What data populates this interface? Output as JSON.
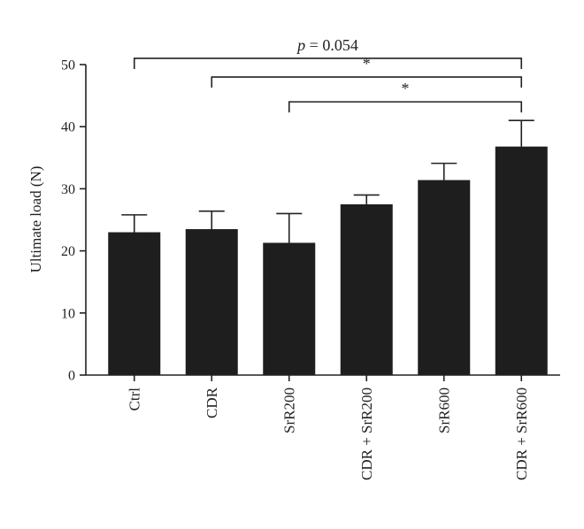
{
  "chart_data": {
    "type": "bar",
    "ylabel": "Ultimate load (N)",
    "ylim": [
      0,
      50
    ],
    "yticks": [
      0,
      10,
      20,
      30,
      40,
      50
    ],
    "categories": [
      "Ctrl",
      "CDR",
      "SrR200",
      "CDR + SrR200",
      "SrR600",
      "CDR + SrR600"
    ],
    "values": [
      23.0,
      23.5,
      21.3,
      27.5,
      31.4,
      36.8
    ],
    "error_upper": [
      25.8,
      26.4,
      26.0,
      29.0,
      34.1,
      41.0
    ],
    "bar_color": "#1e1e1e",
    "grid": false,
    "annotations": [
      {
        "from": "Ctrl",
        "to": "CDR + SrR600",
        "label_italic": "p",
        "label_rest": " = 0.054"
      },
      {
        "from": "CDR",
        "to": "CDR + SrR600",
        "label_italic": "",
        "label_rest": "*"
      },
      {
        "from": "SrR200",
        "to": "CDR + SrR600",
        "label_italic": "",
        "label_rest": "*"
      }
    ]
  }
}
